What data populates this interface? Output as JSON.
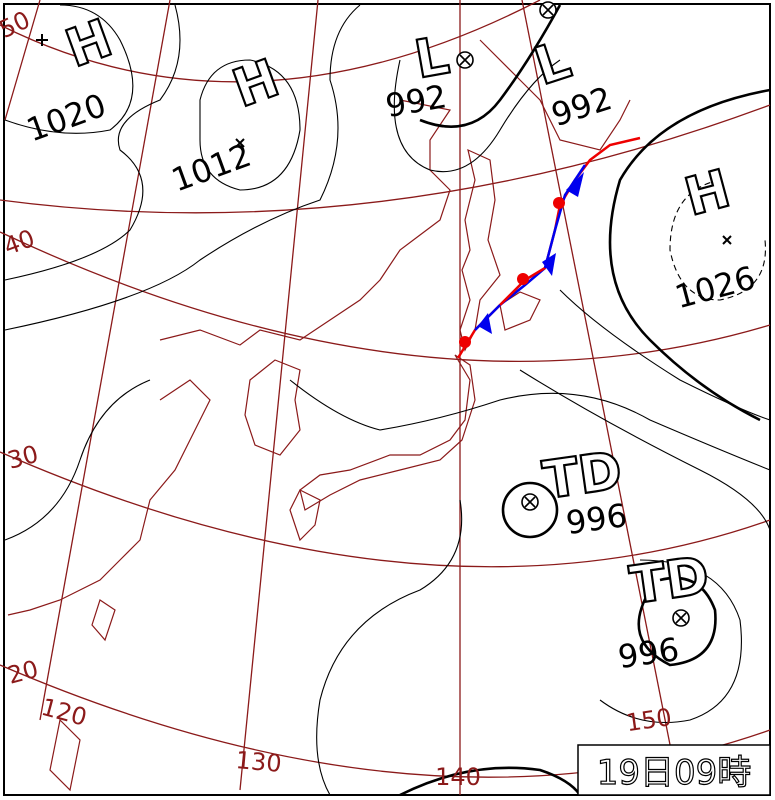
{
  "systems": [
    {
      "symbol": "H",
      "pressure": 1020
    },
    {
      "symbol": "H",
      "pressure": 1012
    },
    {
      "symbol": "L",
      "pressure": 992
    },
    {
      "symbol": "L",
      "pressure": 992
    },
    {
      "symbol": "H",
      "pressure": 1026
    },
    {
      "symbol": "TD",
      "pressure": 996
    },
    {
      "symbol": "TD",
      "pressure": 996
    }
  ],
  "latitudes": [
    50,
    40,
    30,
    20
  ],
  "longitudes": [
    120,
    130,
    140,
    150
  ],
  "timestamp": "19日09時"
}
